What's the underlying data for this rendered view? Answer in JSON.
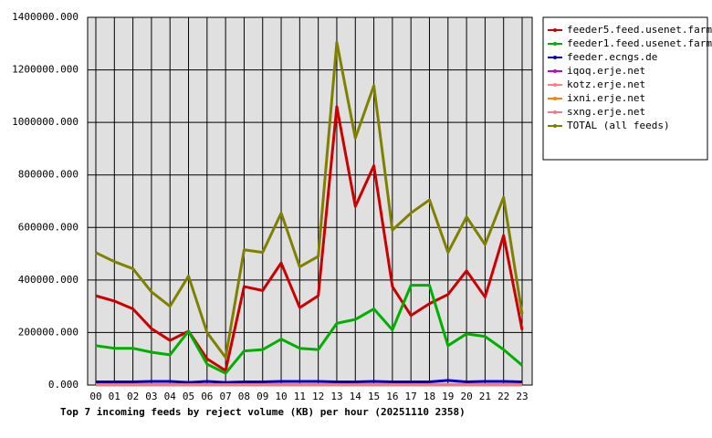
{
  "chart_data": {
    "type": "line",
    "title": "Top 7 incoming feeds by reject volume (KB) per hour (20251110 2358)",
    "categories": [
      "00",
      "01",
      "02",
      "03",
      "04",
      "05",
      "06",
      "07",
      "08",
      "09",
      "10",
      "11",
      "12",
      "13",
      "14",
      "15",
      "16",
      "17",
      "18",
      "19",
      "20",
      "21",
      "22",
      "23"
    ],
    "ylim": [
      0,
      1400000
    ],
    "yticks": [
      {
        "value": 0,
        "label": "0.000"
      },
      {
        "value": 200000,
        "label": "200000.000"
      },
      {
        "value": 400000,
        "label": "400000.000"
      },
      {
        "value": 600000,
        "label": "600000.000"
      },
      {
        "value": 800000,
        "label": "800000.000"
      },
      {
        "value": 1000000,
        "label": "1000000.000"
      },
      {
        "value": 1200000,
        "label": "1200000.000"
      },
      {
        "value": 1400000,
        "label": "1400000.000"
      }
    ],
    "grid": true,
    "legend": "right",
    "series": [
      {
        "name": "feeder5.feed.usenet.farm",
        "color": "#cc0000",
        "values": [
          340000,
          320000,
          290000,
          215000,
          170000,
          205000,
          100000,
          55000,
          375000,
          360000,
          465000,
          295000,
          340000,
          1060000,
          680000,
          835000,
          375000,
          265000,
          310000,
          345000,
          435000,
          335000,
          570000,
          210000
        ]
      },
      {
        "name": "feeder1.feed.usenet.farm",
        "color": "#00b000",
        "values": [
          150000,
          140000,
          140000,
          125000,
          115000,
          205000,
          80000,
          45000,
          130000,
          135000,
          175000,
          140000,
          135000,
          235000,
          250000,
          290000,
          210000,
          380000,
          380000,
          150000,
          195000,
          185000,
          135000,
          75000
        ]
      },
      {
        "name": "feeder.ecngs.de",
        "color": "#0000cc",
        "values": [
          12000,
          12000,
          12000,
          14000,
          14000,
          10000,
          14000,
          10000,
          12000,
          12000,
          14000,
          14000,
          14000,
          12000,
          12000,
          14000,
          12000,
          12000,
          12000,
          18000,
          12000,
          14000,
          14000,
          12000
        ]
      },
      {
        "name": "iqoq.erje.net",
        "color": "#cc00cc",
        "values": [
          1000,
          1000,
          1000,
          1000,
          1000,
          1000,
          1000,
          1000,
          1000,
          1000,
          1000,
          1000,
          1000,
          1000,
          1000,
          1000,
          1000,
          1000,
          1000,
          1000,
          1000,
          1000,
          1000,
          1000
        ]
      },
      {
        "name": "kotz.erje.net",
        "color": "#ff8080",
        "values": [
          1000,
          1000,
          1000,
          1000,
          1000,
          1000,
          1000,
          1000,
          1000,
          1000,
          1000,
          1000,
          1000,
          1000,
          1000,
          1000,
          1000,
          1000,
          1000,
          1000,
          1000,
          1000,
          1000,
          1000
        ]
      },
      {
        "name": "ixni.erje.net",
        "color": "#ff8000",
        "values": [
          1000,
          1000,
          1000,
          1000,
          1000,
          1000,
          1000,
          1000,
          1000,
          1000,
          1000,
          1000,
          1000,
          1000,
          1000,
          1000,
          1000,
          1000,
          1000,
          1000,
          1000,
          1000,
          1000,
          1000
        ]
      },
      {
        "name": "sxng.erje.net",
        "color": "#e08090",
        "values": [
          1000,
          1000,
          1000,
          1000,
          1000,
          1000,
          1000,
          1000,
          1000,
          1000,
          1000,
          1000,
          1000,
          1000,
          1000,
          1000,
          1000,
          1000,
          1000,
          1000,
          1000,
          1000,
          1000,
          1000
        ]
      },
      {
        "name": "TOTAL (all feeds)",
        "color": "#808000",
        "values": [
          504000,
          470000,
          443000,
          355000,
          300000,
          415000,
          200000,
          105000,
          515000,
          505000,
          655000,
          450000,
          490000,
          1305000,
          940000,
          1140000,
          590000,
          655000,
          705000,
          505000,
          640000,
          535000,
          715000,
          270000
        ]
      }
    ]
  }
}
